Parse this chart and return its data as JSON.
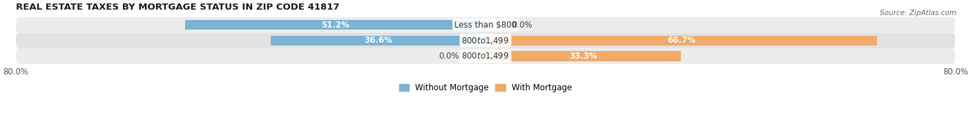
{
  "title": "REAL ESTATE TAXES BY MORTGAGE STATUS IN ZIP CODE 41817",
  "source": "Source: ZipAtlas.com",
  "categories": [
    "Less than $800",
    "$800 to $1,499",
    "$800 to $1,499"
  ],
  "without_mortgage": [
    51.2,
    36.6,
    0.0
  ],
  "with_mortgage": [
    0.0,
    66.7,
    33.3
  ],
  "without_mortgage_labels": [
    "51.2%",
    "36.6%",
    "0.0%"
  ],
  "with_mortgage_labels": [
    "0.0%",
    "66.7%",
    "33.3%"
  ],
  "color_without": "#7ab3d4",
  "color_with": "#f0aa6a",
  "color_without_light": "#b8d4e8",
  "xlim_left": -80.0,
  "xlim_right": 80.0,
  "x_tick_left": "80.0%",
  "x_tick_right": "80.0%",
  "legend_without": "Without Mortgage",
  "legend_with": "With Mortgage",
  "bar_height": 0.62,
  "row_colors": [
    "#ececec",
    "#e2e2e2",
    "#ececec"
  ],
  "title_fontsize": 9.5,
  "label_fontsize": 8.5,
  "tick_fontsize": 8.5,
  "cat_label_fontsize": 8.5
}
